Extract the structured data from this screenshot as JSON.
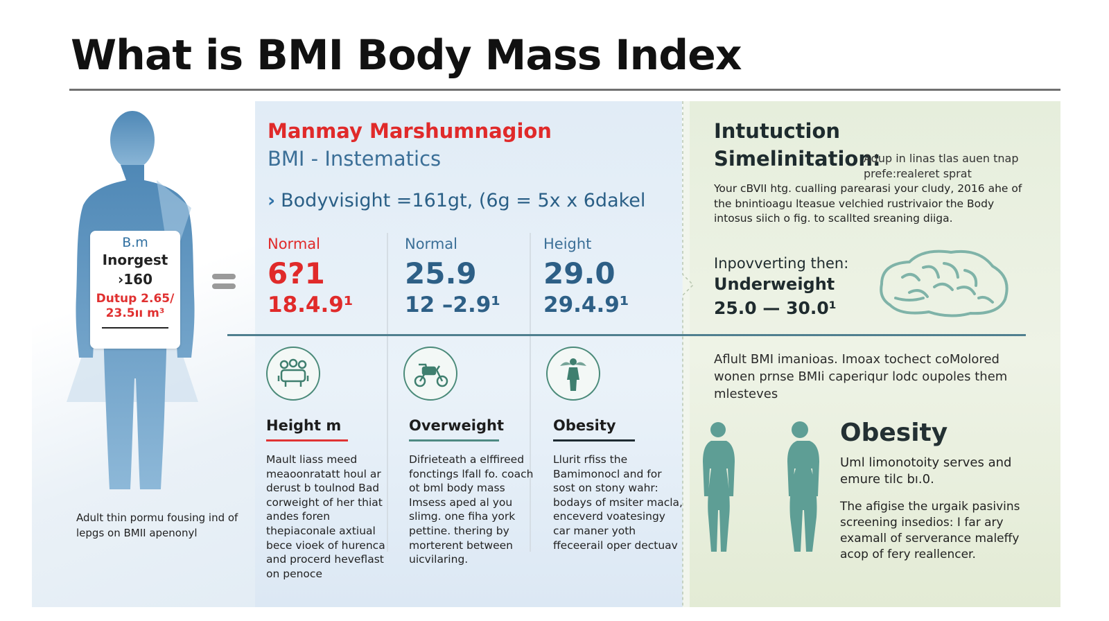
{
  "title": "What is BMI Body Mass Index",
  "left": {
    "card": {
      "line1": "B.m",
      "line2": "Inorgest",
      "line3": "›160",
      "line4": "Dutup 2.65/",
      "line5": "23.5ıı m³"
    },
    "caption": "Adult thin pormu fousing ind of lepgs on BMII apenonyl"
  },
  "middle": {
    "title": "Manmay Marshumnagion",
    "subtitle": "BMI - Instematics",
    "formula": "Bodyvisight =161gt, (6g = 5x x 6dakel",
    "stats": [
      {
        "label": "Normal",
        "big": "6?1",
        "range": "18.4.9¹",
        "color": "#e02a2a",
        "label_color": "#e02a2a"
      },
      {
        "label": "Normal",
        "big": "25.9",
        "range": "12 –2.9¹",
        "color": "#2d5f86",
        "label_color": "#3b6f97"
      },
      {
        "label": "Height",
        "big": "29.0",
        "range": "29.4.9¹",
        "color": "#2d5f86",
        "label_color": "#3b6f97"
      }
    ],
    "categories": [
      {
        "heading": "Height m",
        "line_color": "#e03434",
        "icon": "group-icon",
        "body": "Mault liass meed meaoonratatt houl ar derust b toulnod Bad corweight of her thiat andes foren thepiaconale axtiual bece vioek of hurenca and procerd heveflast on penoce"
      },
      {
        "heading": "Overweight",
        "line_color": "#4e8a83",
        "icon": "motorbike-icon",
        "body": "Difrieteath a elffireed fonctings lfall fo. coach ot bml body mass Imsess aped al you slimg. one fiha york pettine. thering by morterent between uicvilaring."
      },
      {
        "heading": "Obesity",
        "line_color": "#1f2b33",
        "icon": "person-icon",
        "body": "Llurit rfiss the Bamimonocl and for sost on stony wahr: bodays of msiter macla, enceverd voatesingy car maner yoth ffeceerail oper dectuav"
      }
    ]
  },
  "right": {
    "title1": "Intutuction",
    "title2": "Simelinitation:",
    "title2_note": "Adup in linas tlas auen tnap prefe:realeret sprat",
    "para1": "Your cBVII htg. cualling parearasi your cludy, 2016 ahe of the bnintioagu lteasue velchied rustrivaior the Body intosus siich o fig. to scallted sreaning diiga.",
    "improving": "Inpovverting then:",
    "underweight": "Underweight",
    "uw_range": "25.0 — 30.0¹",
    "brain_icon": "brain-icon",
    "para2": "Aflult BMI imanioas. Imoax tochect coMolored wonen prnse BMIi caperiqur lodc oupoles them mlesteves",
    "obesity_title": "Obesity",
    "ob_para1": "Uml limonotoity serves and emure tilc bı.0.",
    "ob_para2": "The afigise the urgaik pasivins screening insedios: I far ary examall of serverance maleffy acop of fery reallencer."
  },
  "colors": {
    "accent_red": "#e02a2a",
    "accent_blue": "#2d5f86",
    "teal": "#4e8a83",
    "figure_blue": "#5b93c0"
  }
}
